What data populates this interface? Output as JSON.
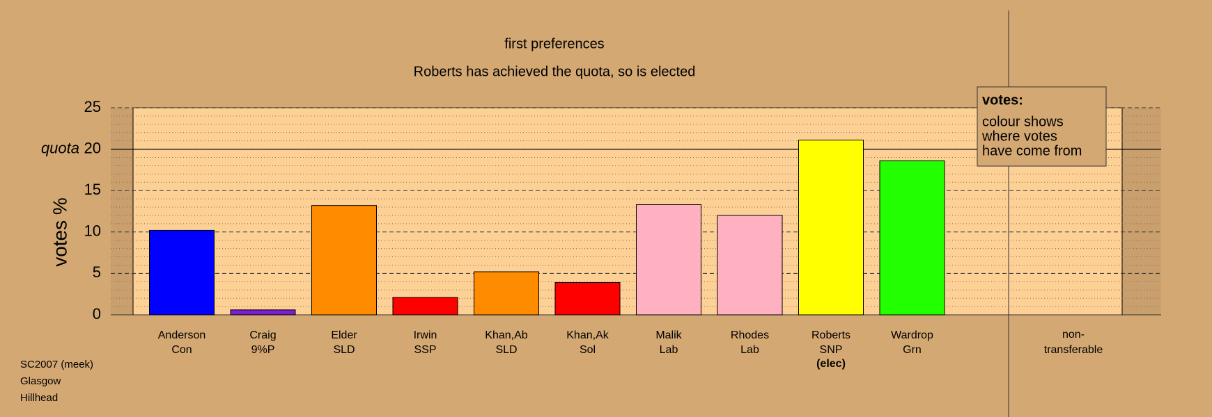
{
  "chart_data": {
    "type": "bar",
    "title": "first preferences",
    "subtitle": "Roberts has achieved the quota, so is elected",
    "y_label": "votes %",
    "categories": [
      "Anderson",
      "Craig",
      "Elder",
      "Irwin",
      "Khan,Ab",
      "Khan,Ak",
      "Malik",
      "Rhodes",
      "Roberts",
      "Wardrop"
    ],
    "parties": [
      "Con",
      "9%P",
      "SLD",
      "SSP",
      "SLD",
      "Sol",
      "Lab",
      "Lab",
      "SNP",
      "Grn"
    ],
    "values": [
      10.2,
      0.6,
      13.2,
      2.1,
      5.2,
      3.9,
      13.3,
      12.0,
      21.1,
      18.6
    ],
    "colors": [
      "#0000ff",
      "#7b1fd1",
      "#ff8c00",
      "#ff0000",
      "#ff8c00",
      "#ff0000",
      "#ffb0c1",
      "#ffb0c1",
      "#ffff00",
      "#22ff00"
    ],
    "elected_note": {
      "index": 8,
      "label": "(elec)"
    },
    "nontransferable_label": [
      "non-",
      "transferable"
    ],
    "quota": {
      "value": 20,
      "label": "quota"
    },
    "ylim": [
      0,
      25
    ],
    "yticks": [
      0,
      5,
      10,
      15,
      20,
      25
    ],
    "grid": true,
    "legend": {
      "title": "votes:",
      "lines": [
        "colour shows",
        "where votes",
        "have come from"
      ]
    },
    "footnotes": [
      "SC2007 (meek)",
      "Glasgow",
      "Hillhead"
    ]
  }
}
